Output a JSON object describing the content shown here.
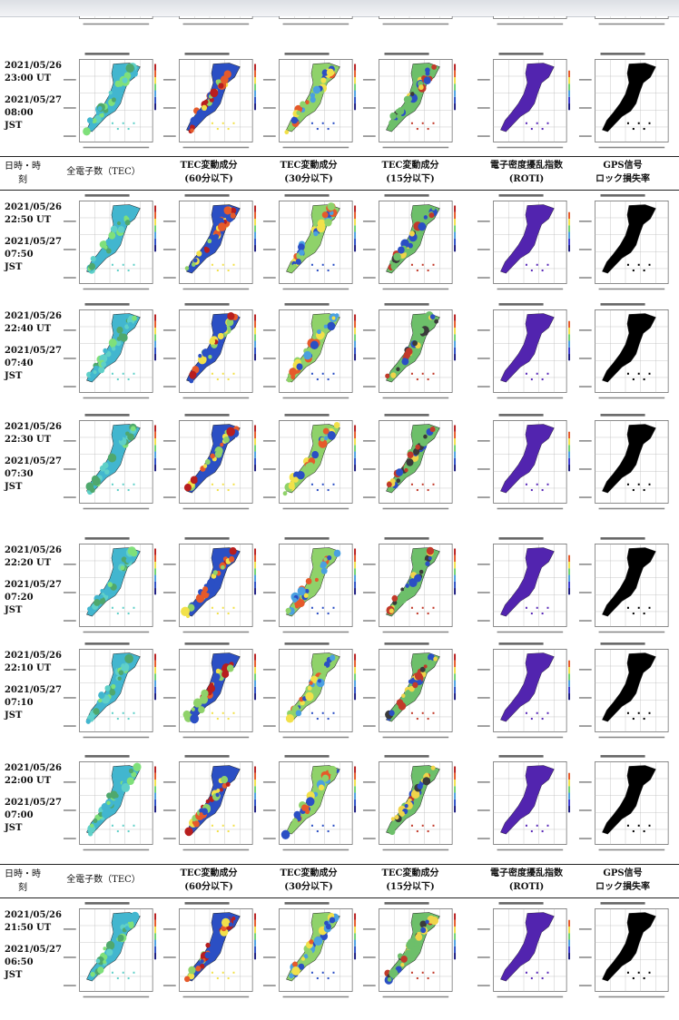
{
  "header": {
    "time": "日時・時刻",
    "tec": "全電子数（TEC）",
    "d60": "TEC変動成分\n(60分以下)",
    "d30": "TEC変動成分\n(30分以下)",
    "d15": "TEC変動成分\n(15分以下)",
    "roti": "電子密度擾乱指数\n(ROTI)",
    "lol": "GPS信号\nロック損失率"
  },
  "rows": [
    {
      "ut_date": "2021/05/26",
      "ut_time": "23:00 UT",
      "jst_date": "2021/05/27",
      "jst_time": "08:00",
      "jst": "JST"
    },
    {
      "ut_date": "2021/05/26",
      "ut_time": "22:50 UT",
      "jst_date": "2021/05/27",
      "jst_time": "07:50",
      "jst": "JST"
    },
    {
      "ut_date": "2021/05/26",
      "ut_time": "22:40 UT",
      "jst_date": "2021/05/27",
      "jst_time": "07:40",
      "jst": "JST"
    },
    {
      "ut_date": "2021/05/26",
      "ut_time": "22:30 UT",
      "jst_date": "2021/05/27",
      "jst_time": "07:30",
      "jst": "JST"
    },
    {
      "ut_date": "2021/05/26",
      "ut_time": "22:20 UT",
      "jst_date": "2021/05/27",
      "jst_time": "07:20",
      "jst": "JST"
    },
    {
      "ut_date": "2021/05/26",
      "ut_time": "22:10 UT",
      "jst_date": "2021/05/27",
      "jst_time": "07:10",
      "jst": "JST"
    },
    {
      "ut_date": "2021/05/26",
      "ut_time": "22:00 UT",
      "jst_date": "2021/05/27",
      "jst_time": "07:00",
      "jst": "JST"
    },
    {
      "ut_date": "2021/05/26",
      "ut_time": "21:50 UT",
      "jst_date": "2021/05/27",
      "jst_time": "06:50",
      "jst": "JST"
    }
  ],
  "map_types": [
    "tec",
    "d60",
    "d30",
    "d15",
    "roti",
    "lol"
  ],
  "colors": {
    "tec": [
      "#42b6cf",
      "#5fd0c8",
      "#7fe07a",
      "#4fa86d"
    ],
    "d60": [
      "#2b4fc4",
      "#f2e14a",
      "#e65a2a",
      "#b81e1e",
      "#8fd26a"
    ],
    "d30": [
      "#8fd26a",
      "#2b4fc4",
      "#f2e14a",
      "#e65a2a",
      "#4aa0e0"
    ],
    "d15": [
      "#6dbf6a",
      "#c23a2a",
      "#f0d44a",
      "#2b4fc4",
      "#3a3a3a"
    ],
    "roti": [
      "#4a1fa6",
      "#5a2ab8"
    ],
    "lol": [
      "#000000"
    ]
  }
}
